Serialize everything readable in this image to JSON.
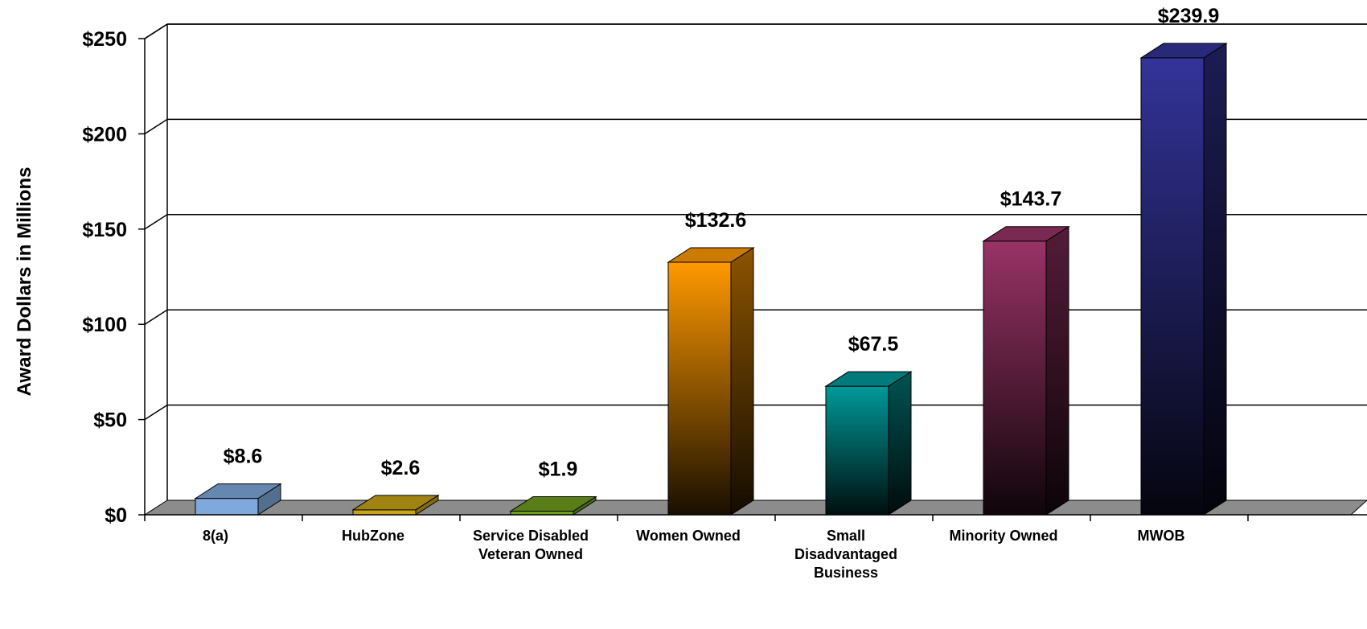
{
  "chart_data": {
    "type": "bar",
    "title": "",
    "ylabel": "Award Dollars in Millions",
    "xlabel": "",
    "ylim": [
      0,
      250
    ],
    "yticks": [
      0,
      50,
      100,
      150,
      200,
      250
    ],
    "ytick_labels": [
      "$0",
      "$50",
      "$100",
      "$150",
      "$200",
      "$250"
    ],
    "grid": true,
    "style": "3d-column",
    "categories": [
      {
        "label_lines": [
          "8(a)"
        ],
        "value": 8.6,
        "data_label": "$8.6",
        "color": "#7fa9dc"
      },
      {
        "label_lines": [
          "HubZone"
        ],
        "value": 2.6,
        "data_label": "$2.6",
        "color": "#c9a417"
      },
      {
        "label_lines": [
          "Service Disabled",
          "Veteran Owned"
        ],
        "value": 1.9,
        "data_label": "$1.9",
        "color": "#6f9e1d"
      },
      {
        "label_lines": [
          "Women Owned"
        ],
        "value": 132.6,
        "data_label": "$132.6",
        "color": "#ff9900"
      },
      {
        "label_lines": [
          "Small",
          "Disadvantaged",
          "Business"
        ],
        "value": 67.5,
        "data_label": "$67.5",
        "color": "#009999"
      },
      {
        "label_lines": [
          "Minority Owned"
        ],
        "value": 143.7,
        "data_label": "$143.7",
        "color": "#993366"
      },
      {
        "label_lines": [
          "MWOB"
        ],
        "value": 239.9,
        "data_label": "$239.9",
        "color": "#333399"
      }
    ]
  }
}
